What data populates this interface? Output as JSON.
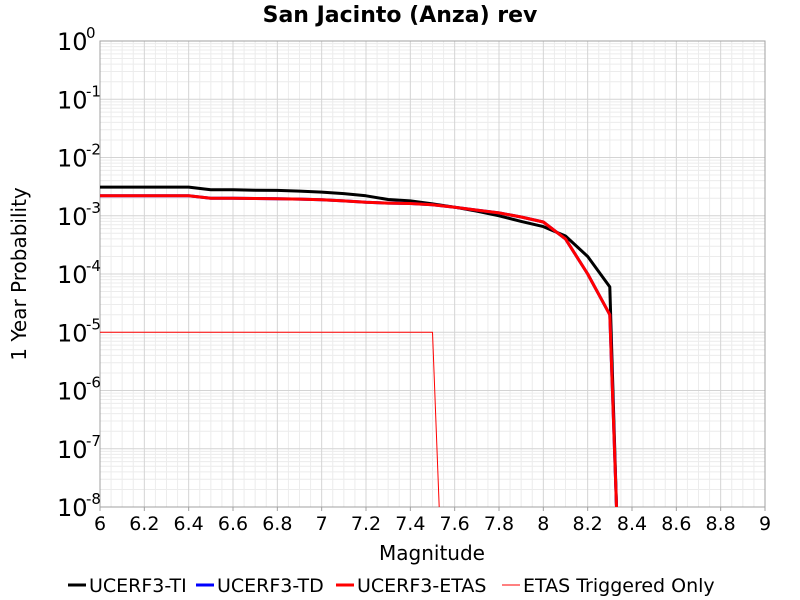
{
  "chart_data": {
    "type": "line",
    "title": "San Jacinto (Anza) rev",
    "xlabel": "Magnitude",
    "ylabel": "1 Year Probability",
    "xlim": [
      6,
      9
    ],
    "ylim": [
      1e-08,
      1
    ],
    "yscale": "log",
    "grid": true,
    "legend_position": "bottom",
    "x_ticks": [
      "6",
      "6.2",
      "6.4",
      "6.6",
      "6.8",
      "7",
      "7.2",
      "7.4",
      "7.6",
      "7.8",
      "8",
      "8.2",
      "8.4",
      "8.6",
      "8.8",
      "9"
    ],
    "y_ticks": [
      {
        "base": "10",
        "exp": "0"
      },
      {
        "base": "10",
        "exp": "-1"
      },
      {
        "base": "10",
        "exp": "-2"
      },
      {
        "base": "10",
        "exp": "-3"
      },
      {
        "base": "10",
        "exp": "-4"
      },
      {
        "base": "10",
        "exp": "-5"
      },
      {
        "base": "10",
        "exp": "-6"
      },
      {
        "base": "10",
        "exp": "-7"
      },
      {
        "base": "10",
        "exp": "-8"
      }
    ],
    "series": [
      {
        "name": "UCERF3-TI",
        "color": "#000000",
        "width": 3,
        "x": [
          6.0,
          6.1,
          6.2,
          6.3,
          6.4,
          6.5,
          6.6,
          6.7,
          6.8,
          6.9,
          7.0,
          7.1,
          7.2,
          7.3,
          7.4,
          7.5,
          7.6,
          7.7,
          7.8,
          7.9,
          8.0,
          8.1,
          8.2,
          8.3,
          8.33
        ],
        "y": [
          0.0031,
          0.0031,
          0.0031,
          0.0031,
          0.0031,
          0.0028,
          0.0028,
          0.00275,
          0.00272,
          0.00265,
          0.00255,
          0.0024,
          0.0022,
          0.0019,
          0.0018,
          0.0016,
          0.0014,
          0.0012,
          0.001,
          0.0008,
          0.00065,
          0.00045,
          0.0002,
          6e-05,
          1e-08
        ]
      },
      {
        "name": "UCERF3-TD",
        "color": "#0000ff",
        "width": 3,
        "x": [
          6.0,
          6.1,
          6.2,
          6.3,
          6.4,
          6.5,
          6.6,
          6.7,
          6.8,
          6.9,
          7.0,
          7.1,
          7.2,
          7.3,
          7.4,
          7.5,
          7.6,
          7.7,
          7.8,
          7.9,
          8.0,
          8.1,
          8.2,
          8.3,
          8.33
        ],
        "y": [
          0.0022,
          0.0022,
          0.0022,
          0.0022,
          0.0022,
          0.002,
          0.002,
          0.00198,
          0.00196,
          0.00193,
          0.00188,
          0.0018,
          0.0017,
          0.00165,
          0.00162,
          0.00155,
          0.0014,
          0.00125,
          0.00112,
          0.00095,
          0.00078,
          0.0004,
          0.0001,
          2e-05,
          1e-08
        ]
      },
      {
        "name": "UCERF3-ETAS",
        "color": "#ff0000",
        "width": 3,
        "x": [
          6.0,
          6.1,
          6.2,
          6.3,
          6.4,
          6.5,
          6.6,
          6.7,
          6.8,
          6.9,
          7.0,
          7.1,
          7.2,
          7.3,
          7.4,
          7.5,
          7.6,
          7.7,
          7.8,
          7.9,
          8.0,
          8.1,
          8.2,
          8.3,
          8.33
        ],
        "y": [
          0.0022,
          0.0022,
          0.0022,
          0.0022,
          0.0022,
          0.002,
          0.002,
          0.00198,
          0.00196,
          0.00193,
          0.00188,
          0.0018,
          0.0017,
          0.00165,
          0.00162,
          0.00155,
          0.0014,
          0.00125,
          0.00112,
          0.00095,
          0.00078,
          0.0004,
          0.0001,
          2e-05,
          1e-08
        ]
      },
      {
        "name": "ETAS Triggered Only",
        "color": "#ff0000",
        "width": 1,
        "legend_color": "#ff8080",
        "x": [
          6.0,
          7.5,
          7.53
        ],
        "y": [
          1e-05,
          1e-05,
          1e-08
        ]
      }
    ]
  }
}
